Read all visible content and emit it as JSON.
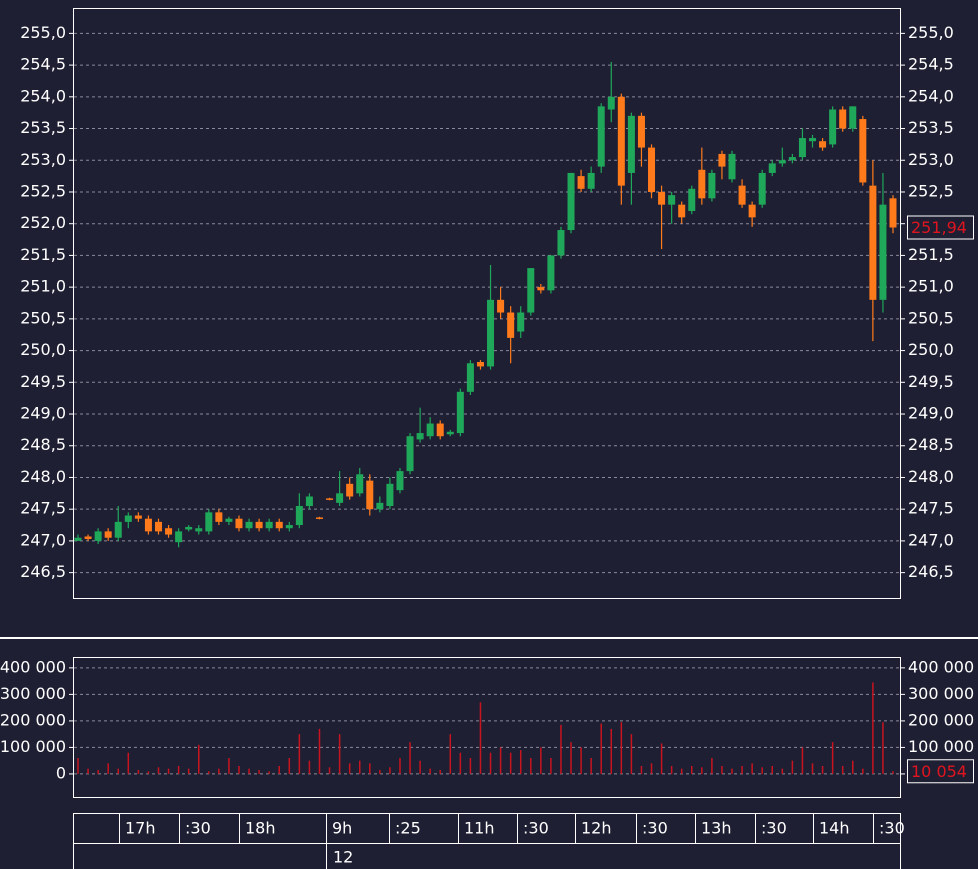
{
  "chart_data": [
    {
      "type": "candlestick",
      "ylim": [
        246.1,
        255.4
      ],
      "yticks": [
        {
          "value": 246.5,
          "label": "246,5"
        },
        {
          "value": 247,
          "label": "247,0"
        },
        {
          "value": 247.5,
          "label": "247,5"
        },
        {
          "value": 248,
          "label": "248,0"
        },
        {
          "value": 248.5,
          "label": "248,5"
        },
        {
          "value": 249,
          "label": "249,0"
        },
        {
          "value": 249.5,
          "label": "249,5"
        },
        {
          "value": 250,
          "label": "250,0"
        },
        {
          "value": 250.5,
          "label": "250,5"
        },
        {
          "value": 251,
          "label": "251,0"
        },
        {
          "value": 251.5,
          "label": "251,5"
        },
        {
          "value": 252,
          "label": "252,0"
        },
        {
          "value": 252.5,
          "label": "252,5"
        },
        {
          "value": 253,
          "label": "253,0"
        },
        {
          "value": 253.5,
          "label": "253,5"
        },
        {
          "value": 254,
          "label": "254,0"
        },
        {
          "value": 254.5,
          "label": "254,5"
        },
        {
          "value": 255,
          "label": "255,0"
        }
      ],
      "grid": true,
      "up_color": "#1fa85a",
      "down_color": "#ff7a1a",
      "open": [
        247.0,
        247.07,
        247.0,
        247.15,
        247.05,
        247.3,
        247.4,
        247.35,
        247.3,
        247.2,
        246.98,
        247.18,
        247.15,
        247.15,
        247.45,
        247.3,
        247.35,
        247.2,
        247.3,
        247.2,
        247.3,
        247.2,
        247.25,
        247.55,
        247.37,
        247.67,
        247.6,
        247.9,
        247.75,
        247.95,
        247.5,
        247.55,
        247.8,
        248.1,
        248.6,
        248.65,
        248.85,
        248.68,
        248.7,
        249.35,
        249.82,
        249.75,
        250.8,
        250.6,
        250.3,
        250.6,
        251.0,
        250.95,
        251.5,
        251.9,
        252.75,
        252.55,
        252.9,
        253.8,
        254.0,
        252.8,
        253.7,
        253.2,
        252.5,
        252.3,
        252.3,
        252.2,
        252.85,
        252.4,
        253.1,
        252.7,
        252.6,
        252.3,
        252.3,
        252.8,
        252.95,
        253.0,
        253.05,
        253.3,
        253.3,
        253.25,
        253.8,
        253.5,
        253.65,
        252.6,
        250.8,
        252.4
      ],
      "high": [
        247.1,
        247.1,
        247.2,
        247.2,
        247.55,
        247.45,
        247.45,
        247.4,
        247.35,
        247.25,
        247.2,
        247.25,
        247.25,
        247.5,
        247.5,
        247.38,
        247.4,
        247.35,
        247.35,
        247.35,
        247.35,
        247.3,
        247.75,
        247.75,
        247.38,
        247.68,
        248.1,
        248.0,
        248.15,
        248.05,
        247.7,
        248.0,
        248.15,
        248.7,
        249.1,
        248.95,
        248.9,
        248.75,
        249.4,
        249.85,
        249.85,
        251.35,
        251.0,
        250.7,
        250.7,
        251.3,
        251.05,
        251.5,
        251.95,
        252.8,
        252.85,
        252.9,
        253.9,
        254.55,
        254.05,
        253.75,
        253.75,
        253.25,
        252.6,
        252.5,
        252.35,
        252.6,
        253.2,
        252.85,
        253.15,
        253.15,
        252.7,
        252.35,
        252.85,
        253.0,
        253.2,
        253.1,
        253.5,
        253.4,
        253.35,
        253.85,
        253.85,
        253.85,
        253.7,
        253.0,
        252.8,
        252.45
      ],
      "low": [
        247.0,
        247.0,
        246.95,
        247.0,
        247.0,
        247.2,
        247.3,
        247.1,
        247.1,
        247.05,
        246.9,
        247.15,
        247.1,
        247.1,
        247.25,
        247.25,
        247.15,
        247.15,
        247.15,
        247.15,
        247.15,
        247.15,
        247.2,
        247.5,
        247.34,
        247.64,
        247.55,
        247.65,
        247.7,
        247.4,
        247.45,
        247.5,
        247.75,
        248.05,
        248.55,
        248.6,
        248.6,
        248.65,
        248.65,
        249.3,
        249.7,
        249.7,
        250.5,
        249.8,
        250.2,
        250.55,
        250.9,
        250.9,
        251.45,
        251.85,
        252.5,
        252.5,
        252.8,
        253.6,
        252.3,
        252.3,
        252.9,
        252.4,
        251.6,
        252.0,
        252.0,
        252.15,
        252.3,
        252.35,
        252.7,
        252.65,
        252.25,
        251.95,
        252.25,
        252.75,
        252.9,
        252.95,
        253.0,
        253.2,
        253.15,
        253.2,
        253.45,
        253.45,
        252.6,
        250.15,
        250.6,
        251.85
      ],
      "close": [
        247.05,
        247.03,
        247.15,
        247.05,
        247.3,
        247.4,
        247.35,
        247.15,
        247.15,
        247.1,
        247.15,
        247.22,
        247.2,
        247.45,
        247.3,
        247.35,
        247.2,
        247.3,
        247.2,
        247.3,
        247.2,
        247.25,
        247.55,
        247.7,
        247.35,
        247.65,
        247.75,
        247.7,
        248.05,
        247.5,
        247.6,
        247.9,
        248.1,
        248.65,
        248.7,
        248.85,
        248.65,
        248.72,
        249.35,
        249.8,
        249.75,
        250.8,
        250.6,
        250.2,
        250.6,
        251.3,
        250.95,
        251.5,
        251.9,
        252.8,
        252.55,
        252.8,
        253.85,
        254.0,
        252.6,
        253.7,
        253.2,
        252.5,
        252.3,
        252.45,
        252.1,
        252.55,
        252.4,
        252.8,
        252.9,
        253.1,
        252.3,
        252.1,
        252.8,
        252.95,
        253.0,
        253.05,
        253.35,
        253.35,
        253.2,
        253.8,
        253.5,
        253.85,
        252.65,
        250.8,
        252.3,
        251.94
      ],
      "last_value": {
        "value": 251.94,
        "label": "251,94"
      }
    },
    {
      "type": "bar",
      "ylim": [
        -87000,
        441000
      ],
      "yticks": [
        {
          "value": 0,
          "label": "0"
        },
        {
          "value": 100000,
          "label": "100 000"
        },
        {
          "value": 200000,
          "label": "200 000"
        },
        {
          "value": 300000,
          "label": "300 000"
        },
        {
          "value": 400000,
          "label": "400 000"
        }
      ],
      "grid": true,
      "color": "#c8141e",
      "values": [
        60000,
        20000,
        15000,
        40000,
        20000,
        80000,
        15000,
        10000,
        25000,
        20000,
        30000,
        20000,
        110000,
        10000,
        20000,
        60000,
        30000,
        20000,
        15000,
        10000,
        30000,
        60000,
        150000,
        50000,
        170000,
        25000,
        150000,
        40000,
        50000,
        40000,
        15000,
        25000,
        60000,
        120000,
        50000,
        20000,
        15000,
        150000,
        80000,
        60000,
        270000,
        80000,
        100000,
        80000,
        90000,
        60000,
        100000,
        60000,
        185000,
        120000,
        100000,
        60000,
        190000,
        170000,
        195000,
        150000,
        30000,
        40000,
        115000,
        30000,
        20000,
        30000,
        25000,
        60000,
        30000,
        20000,
        30000,
        40000,
        25000,
        30000,
        20000,
        50000,
        100000,
        40000,
        30000,
        120000,
        30000,
        50000,
        20000,
        345000,
        195000,
        10054
      ],
      "last_value": {
        "value": 10054,
        "label": "10 054"
      }
    }
  ],
  "time_axis": {
    "labels": [
      "17h",
      ":30",
      "18h",
      "9h",
      ":25",
      "11h",
      ":30",
      "12h",
      ":30",
      "13h",
      ":30",
      "14h",
      ":30"
    ],
    "date_label": "12"
  }
}
